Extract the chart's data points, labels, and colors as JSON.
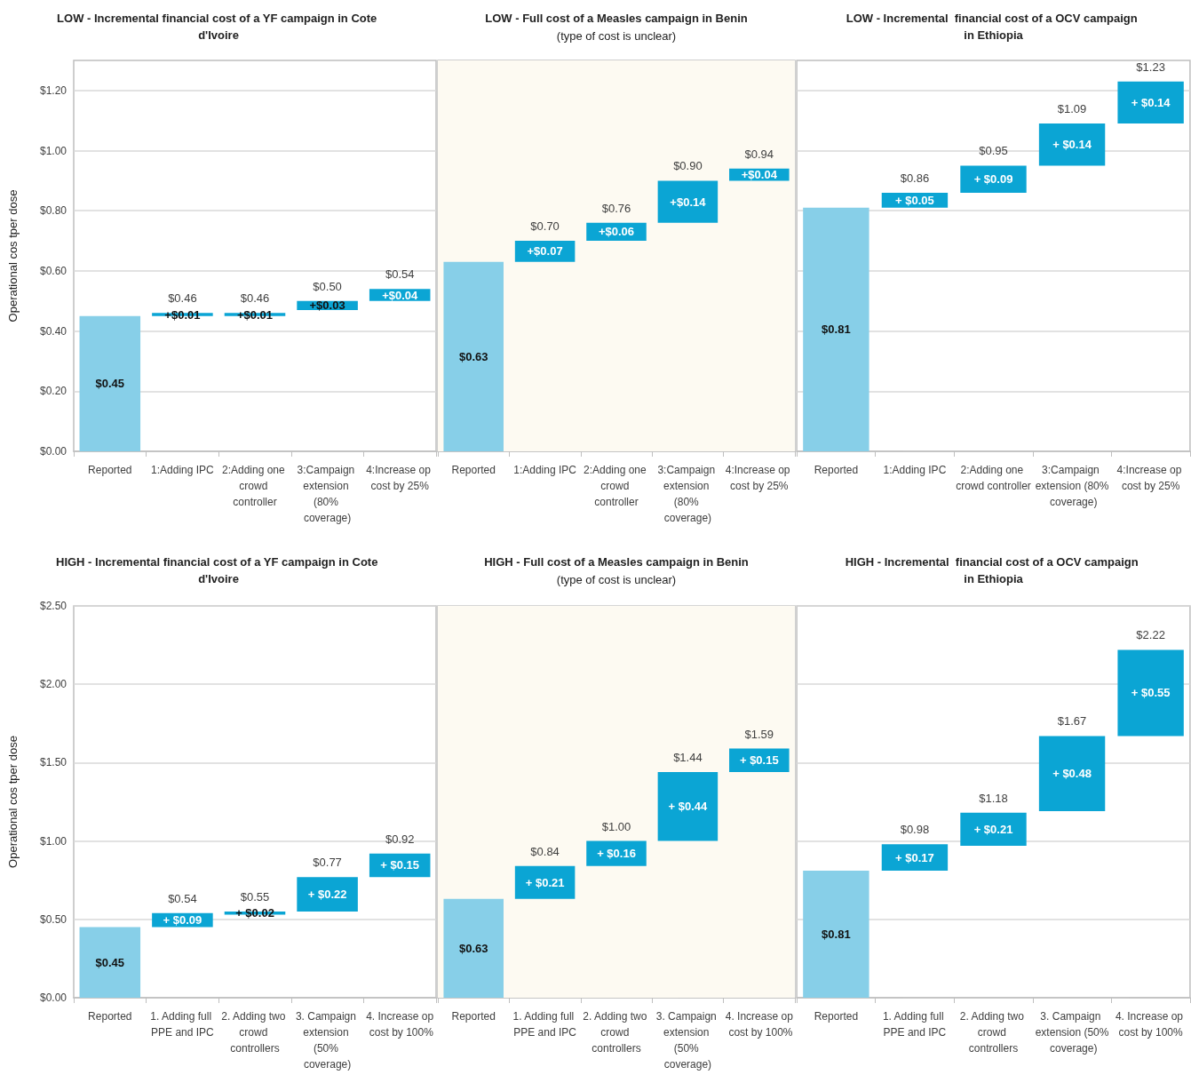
{
  "chart_data": [
    {
      "type": "bar",
      "title": "LOW - Incremental financial cost of a YF campaign in Cote d'Ivoire",
      "ylabel": "Operational cos tper dose",
      "categories": [
        "Reported",
        "1:Adding IPC",
        "2:Adding one crowd controller",
        "3:Campaign extension (80% coverage)",
        "4:Increase op cost by 25%"
      ],
      "values": [
        0.45,
        0.01,
        0.01,
        0.03,
        0.04
      ],
      "base": [
        0,
        0.45,
        0.45,
        0.47,
        0.5
      ],
      "colors": [
        "#87cfe8",
        "#0ba5d4",
        "#0ba5d4",
        "#0ba5d4",
        "#0ba5d4"
      ],
      "value_labels": [
        "$0.45",
        "+$0.01",
        "+$0.01",
        "+$0.03",
        "+$0.04"
      ],
      "annotations": [
        {
          "text": "$0.46",
          "x": "1:Adding IPC",
          "y": 0.46
        },
        {
          "text": "$0.46",
          "x": "2:Adding one crowd controller",
          "y": 0.46
        },
        {
          "text": "$0.50",
          "x": "3:Campaign extension (80% coverage)",
          "y": 0.5
        },
        {
          "text": "$0.54",
          "x": "4:Increase op cost by 25%",
          "y": 0.54
        }
      ],
      "ylim": [
        0,
        1.3
      ],
      "yticks": [
        {
          "value": 0,
          "label": "$0.00"
        },
        {
          "value": 0.2,
          "label": "$0.20"
        },
        {
          "value": 0.4,
          "label": "$0.40"
        },
        {
          "value": 0.6,
          "label": "$0.60"
        },
        {
          "value": 0.8,
          "label": "$0.80"
        },
        {
          "value": 1,
          "label": "$1.00"
        },
        {
          "value": 1.2,
          "label": "$1.20"
        }
      ],
      "grid": "y"
    },
    {
      "type": "bar",
      "title": "LOW - Full cost of a Measles campaign in Benin",
      "subtitle": "(type of cost is unclear)",
      "categories": [
        "Reported",
        "1:Adding IPC",
        "2:Adding one crowd controller",
        "3:Campaign extension (80% coverage)",
        "4:Increase op cost by 25%"
      ],
      "values": [
        0.63,
        0.07,
        0.06,
        0.14,
        0.04
      ],
      "base": [
        0,
        0.63,
        0.7,
        0.76,
        0.9
      ],
      "colors": [
        "#87cfe8",
        "#0ba5d4",
        "#0ba5d4",
        "#0ba5d4",
        "#0ba5d4"
      ],
      "value_labels": [
        "$0.63",
        "+$0.07",
        "+$0.06",
        "+$0.14",
        "+$0.04"
      ],
      "annotations": [
        {
          "text": "$0.70",
          "x": "1:Adding IPC",
          "y": 0.7
        },
        {
          "text": "$0.76",
          "x": "2:Adding one crowd controller",
          "y": 0.76
        },
        {
          "text": "$0.90",
          "x": "3:Campaign extension (80% coverage)",
          "y": 0.9
        },
        {
          "text": "$0.94",
          "x": "4:Increase op cost by 25%",
          "y": 0.94
        }
      ],
      "ylim": [
        0,
        1.3
      ],
      "yticks": [
        {
          "value": 0,
          "label": null
        },
        {
          "value": 0.2,
          "label": null
        },
        {
          "value": 0.4,
          "label": null
        },
        {
          "value": 0.6,
          "label": null
        },
        {
          "value": 0.8,
          "label": null
        },
        {
          "value": 1,
          "label": null
        },
        {
          "value": 1.2,
          "label": null
        }
      ],
      "grid": "y",
      "tick_labels": "x",
      "bands": [
        {
          "axis": "y",
          "from": 0,
          "to": 1.3,
          "color": "#fdfaf2"
        }
      ]
    },
    {
      "type": "bar",
      "title": "LOW - Incremental  financial cost of a OCV campaign in Ethiopia",
      "categories": [
        "Reported",
        "1:Adding IPC",
        "2:Adding one crowd controller",
        "3:Campaign extension (80% coverage)",
        "4:Increase op cost by 25%"
      ],
      "values": [
        0.81,
        0.05,
        0.09,
        0.14,
        0.14
      ],
      "base": [
        0,
        0.81,
        0.86,
        0.95,
        1.09
      ],
      "colors": [
        "#87cfe8",
        "#0ba5d4",
        "#0ba5d4",
        "#0ba5d4",
        "#0ba5d4"
      ],
      "value_labels": [
        "$0.81",
        "+ $0.05",
        "+ $0.09",
        "+ $0.14",
        "+ $0.14"
      ],
      "annotations": [
        {
          "text": "$0.86",
          "x": "1:Adding IPC",
          "y": 0.86
        },
        {
          "text": "$0.95",
          "x": "2:Adding one crowd controller",
          "y": 0.95
        },
        {
          "text": "$1.09",
          "x": "3:Campaign extension (80% coverage)",
          "y": 1.09
        },
        {
          "text": "$1.23",
          "x": "4:Increase op cost by 25%",
          "y": 1.23
        }
      ],
      "ylim": [
        0,
        1.3
      ],
      "yticks": [
        {
          "value": 0,
          "label": null
        },
        {
          "value": 0.2,
          "label": null
        },
        {
          "value": 0.4,
          "label": null
        },
        {
          "value": 0.6,
          "label": null
        },
        {
          "value": 0.8,
          "label": null
        },
        {
          "value": 1,
          "label": null
        },
        {
          "value": 1.2,
          "label": null
        }
      ],
      "grid": "y",
      "tick_labels": "x"
    },
    {
      "type": "bar",
      "title": "HIGH - Incremental financial cost of a YF campaign in Cote d'Ivoire",
      "ylabel": "Operational cos tper dose",
      "categories": [
        "Reported",
        "1. Adding full PPE and IPC",
        "2. Adding two crowd controllers",
        "3. Campaign extension (50% coverage)",
        "4. Increase op cost by 100%"
      ],
      "values": [
        0.45,
        0.09,
        0.02,
        0.22,
        0.15
      ],
      "base": [
        0,
        0.45,
        0.53,
        0.55,
        0.77
      ],
      "colors": [
        "#87cfe8",
        "#0ba5d4",
        "#0ba5d4",
        "#0ba5d4",
        "#0ba5d4"
      ],
      "value_labels": [
        "$0.45",
        "+ $0.09",
        "+ $0.02",
        "+ $0.22",
        "+ $0.15"
      ],
      "annotations": [
        {
          "text": "$0.54",
          "x": "1. Adding full PPE and IPC",
          "y": 0.54
        },
        {
          "text": "$0.55",
          "x": "2. Adding two crowd controllers",
          "y": 0.55
        },
        {
          "text": "$0.77",
          "x": "3. Campaign extension (50% coverage)",
          "y": 0.77
        },
        {
          "text": "$0.92",
          "x": "4. Increase op cost by 100%",
          "y": 0.92
        }
      ],
      "ylim": [
        0,
        2.5
      ],
      "yticks": [
        {
          "value": 0,
          "label": "$0.00"
        },
        {
          "value": 0.5,
          "label": "$0.50"
        },
        {
          "value": 1,
          "label": "$1.00"
        },
        {
          "value": 1.5,
          "label": "$1.50"
        },
        {
          "value": 2,
          "label": "$2.00"
        },
        {
          "value": 2.5,
          "label": "$2.50"
        }
      ],
      "grid": "y"
    },
    {
      "type": "bar",
      "title": "HIGH - Full cost of a Measles campaign in Benin",
      "subtitle": "(type of cost is unclear)",
      "categories": [
        "Reported",
        "1. Adding full PPE and IPC",
        "2. Adding two crowd controllers",
        "3. Campaign extension (50% coverage)",
        "4. Increase op cost by 100%"
      ],
      "values": [
        0.63,
        0.21,
        0.16,
        0.44,
        0.15
      ],
      "base": [
        0,
        0.63,
        0.84,
        1.0,
        1.44
      ],
      "colors": [
        "#87cfe8",
        "#0ba5d4",
        "#0ba5d4",
        "#0ba5d4",
        "#0ba5d4"
      ],
      "value_labels": [
        "$0.63",
        "+ $0.21",
        "+ $0.16",
        "+ $0.44",
        "+ $0.15"
      ],
      "annotations": [
        {
          "text": "$0.84",
          "x": "1. Adding full PPE and IPC",
          "y": 0.84
        },
        {
          "text": "$1.00",
          "x": "2. Adding two crowd controllers",
          "y": 1.0
        },
        {
          "text": "$1.44",
          "x": "3. Campaign extension (50% coverage)",
          "y": 1.44
        },
        {
          "text": "$1.59",
          "x": "4. Increase op cost by 100%",
          "y": 1.59
        }
      ],
      "ylim": [
        0,
        2.5
      ],
      "yticks": [
        {
          "value": 0,
          "label": null
        },
        {
          "value": 0.5,
          "label": null
        },
        {
          "value": 1,
          "label": null
        },
        {
          "value": 1.5,
          "label": null
        },
        {
          "value": 2,
          "label": null
        },
        {
          "value": 2.5,
          "label": null
        }
      ],
      "grid": "y",
      "tick_labels": "x",
      "bands": [
        {
          "axis": "y",
          "from": 0,
          "to": 2.5,
          "color": "#fdfaf2"
        }
      ]
    },
    {
      "type": "bar",
      "title": "HIGH - Incremental  financial cost of a OCV campaign in Ethiopia",
      "categories": [
        "Reported",
        "1. Adding full PPE and IPC",
        "2. Adding two crowd controllers",
        "3. Campaign extension (50% coverage)",
        "4. Increase op cost by 100%"
      ],
      "values": [
        0.81,
        0.17,
        0.21,
        0.48,
        0.55
      ],
      "base": [
        0,
        0.81,
        0.97,
        1.19,
        1.67
      ],
      "colors": [
        "#87cfe8",
        "#0ba5d4",
        "#0ba5d4",
        "#0ba5d4",
        "#0ba5d4"
      ],
      "value_labels": [
        "$0.81",
        "+ $0.17",
        "+ $0.21",
        "+ $0.48",
        "+ $0.55"
      ],
      "annotations": [
        {
          "text": "$0.98",
          "x": "1. Adding full PPE and IPC",
          "y": 0.98
        },
        {
          "text": "$1.18",
          "x": "2. Adding two crowd controllers",
          "y": 1.18
        },
        {
          "text": "$1.67",
          "x": "3. Campaign extension (50% coverage)",
          "y": 1.67
        },
        {
          "text": "$2.22",
          "x": "4. Increase op cost by 100%",
          "y": 2.22
        }
      ],
      "ylim": [
        0,
        2.5
      ],
      "yticks": [
        {
          "value": 0,
          "label": null
        },
        {
          "value": 0.5,
          "label": null
        },
        {
          "value": 1,
          "label": null
        },
        {
          "value": 1.5,
          "label": null
        },
        {
          "value": 2,
          "label": null
        },
        {
          "value": 2.5,
          "label": null
        }
      ],
      "grid": "y",
      "tick_labels": "x"
    }
  ]
}
